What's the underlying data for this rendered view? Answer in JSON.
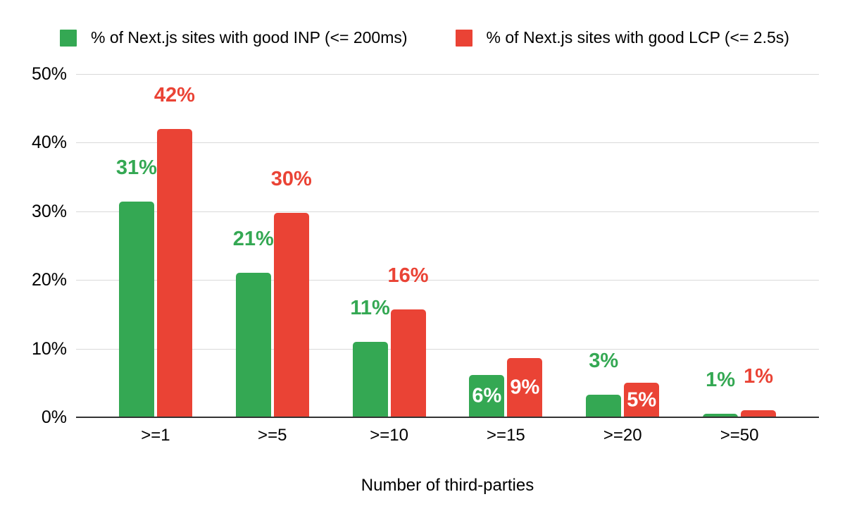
{
  "chart_data": {
    "type": "bar",
    "title": "",
    "xlabel": "Number of third-parties",
    "ylabel": "",
    "categories": [
      ">=1",
      ">=5",
      ">=10",
      ">=15",
      ">=20",
      ">=50"
    ],
    "series": [
      {
        "name": "% of Next.js sites with good INP (<= 200ms)",
        "color": "#34a853",
        "values": [
          31.4,
          21,
          11,
          6.2,
          3.3,
          0.5
        ],
        "labels": [
          "31%",
          "21%",
          "11%",
          "6%",
          "3%",
          "1%"
        ],
        "label_placement": [
          "above",
          "above",
          "above",
          "inside",
          "above",
          "above"
        ]
      },
      {
        "name": "% of Next.js sites with good LCP (<= 2.5s)",
        "color": "#ea4335",
        "values": [
          42,
          29.8,
          15.7,
          8.6,
          5,
          1
        ],
        "labels": [
          "42%",
          "30%",
          "16%",
          "9%",
          "5%",
          "1%"
        ],
        "label_placement": [
          "above",
          "above",
          "above",
          "inside",
          "inside",
          "above"
        ]
      }
    ],
    "yticks": [
      {
        "value": 0,
        "label": "0%"
      },
      {
        "value": 10,
        "label": "10%"
      },
      {
        "value": 20,
        "label": "20%"
      },
      {
        "value": 30,
        "label": "30%"
      },
      {
        "value": 40,
        "label": "40%"
      },
      {
        "value": 50,
        "label": "50%"
      }
    ],
    "ylim": [
      0,
      50
    ],
    "grid": true,
    "legend_position": "top",
    "inside_label_color": "#ffffff"
  },
  "colors": {
    "background": "#ffffff",
    "gridline": "#d9d9d9",
    "axis_line": "#333333",
    "text": "#000000"
  }
}
